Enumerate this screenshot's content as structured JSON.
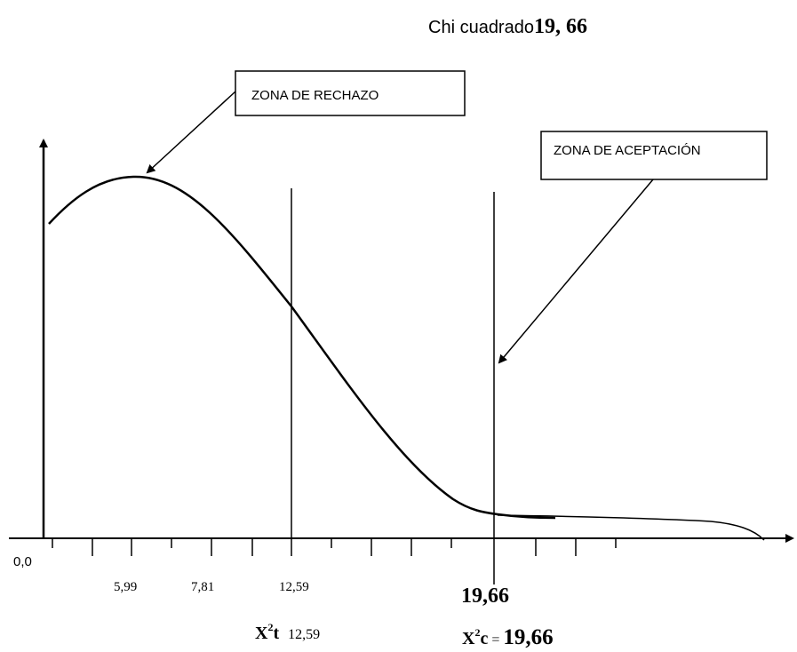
{
  "title": {
    "prefix": "Chi cuadrado",
    "value": "19, 66"
  },
  "boxes": {
    "rejection": "ZONA DE RECHAZO",
    "acceptance": "ZONA DE ACEPTACIÓN"
  },
  "ticks": {
    "origin": "0,0",
    "t1": "5,99",
    "t2": "7,81",
    "t3": "12,59",
    "t4": "19,66"
  },
  "x2t": {
    "base": "X",
    "sup": "2",
    "suffix": "t",
    "value": "12,59"
  },
  "x2c": {
    "base": "X",
    "sup": "2",
    "suffix": "c",
    "eq": "=",
    "value": "19,66"
  }
}
